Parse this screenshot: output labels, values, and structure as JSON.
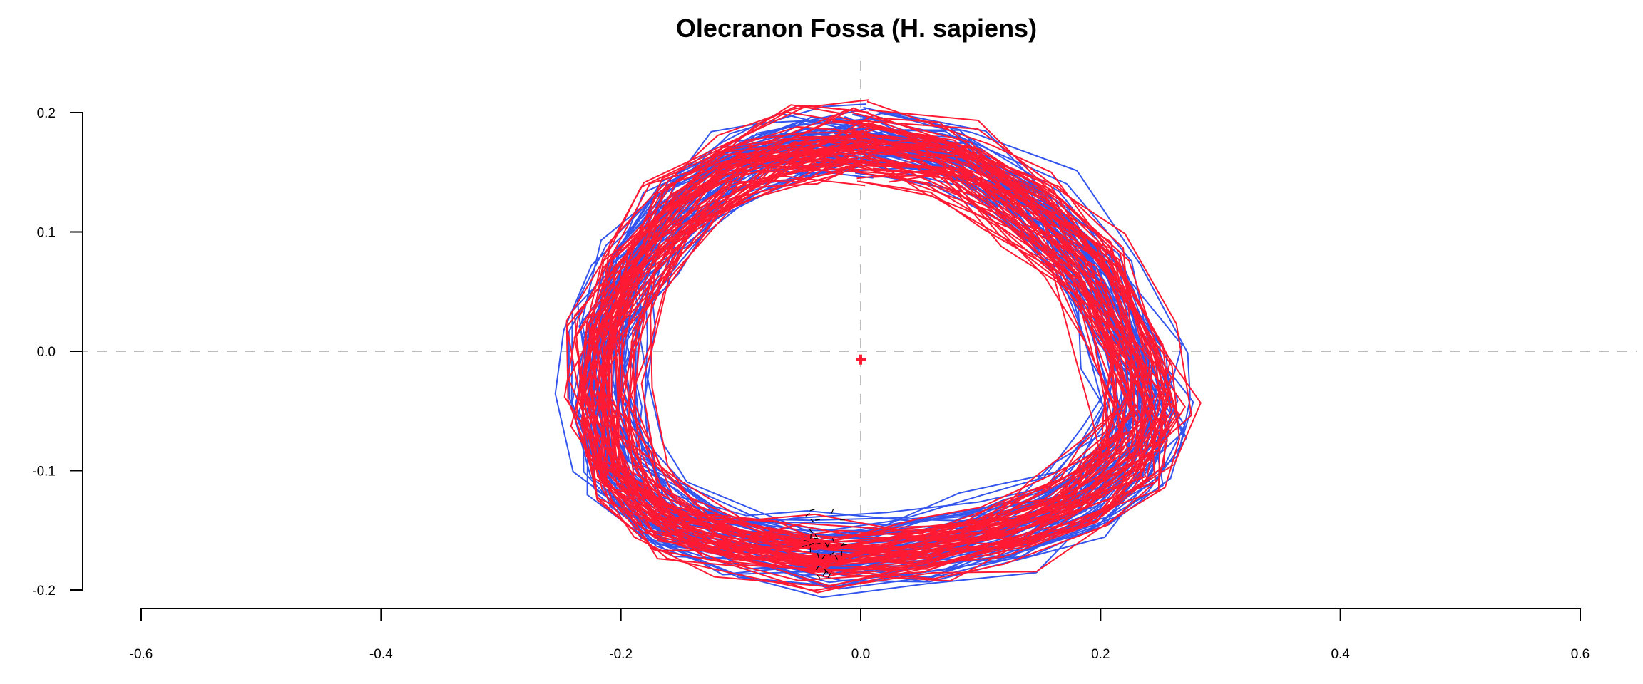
{
  "chart_data": {
    "type": "line",
    "title": "Olecranon Fossa (H. sapiens)",
    "xlabel": "",
    "ylabel": "",
    "xlim": [
      -0.6,
      0.6
    ],
    "ylim": [
      -0.2,
      0.2
    ],
    "x_ticks": [
      -0.6,
      -0.4,
      -0.2,
      0.0,
      0.2,
      0.4,
      0.6
    ],
    "x_tick_labels": [
      "-0.6",
      "-0.4",
      "-0.2",
      "0.0",
      "0.2",
      "0.4",
      "0.6"
    ],
    "y_ticks": [
      -0.2,
      -0.1,
      0.0,
      0.1,
      0.2
    ],
    "y_tick_labels": [
      "-0.2",
      "-0.1",
      "0.0",
      "0.1",
      "0.2"
    ],
    "reference_lines": {
      "x": 0.0,
      "y": 0.0,
      "style": "dashed",
      "color": "#bdbdbd"
    },
    "grid": false,
    "legend": "none",
    "series": [
      {
        "color": "#3355ee",
        "count": 60,
        "mean_outline": {
          "x": [
            0.0,
            0.075,
            0.14,
            0.19,
            0.225,
            0.235,
            0.22,
            0.18,
            0.12,
            0.05,
            -0.03,
            -0.1,
            -0.16,
            -0.2,
            -0.215,
            -0.21,
            -0.19,
            -0.15,
            -0.1,
            -0.05,
            0.0
          ],
          "y": [
            0.175,
            0.16,
            0.12,
            0.07,
            0.0,
            -0.05,
            -0.09,
            -0.125,
            -0.15,
            -0.165,
            -0.17,
            -0.16,
            -0.14,
            -0.1,
            -0.04,
            0.02,
            0.07,
            0.12,
            0.155,
            0.17,
            0.175
          ]
        }
      },
      {
        "color": "#ff1a33",
        "count": 60,
        "mean_outline": {
          "x": [
            0.0,
            0.075,
            0.14,
            0.19,
            0.225,
            0.235,
            0.22,
            0.18,
            0.12,
            0.05,
            -0.03,
            -0.1,
            -0.16,
            -0.2,
            -0.215,
            -0.21,
            -0.19,
            -0.15,
            -0.1,
            -0.05,
            0.0
          ],
          "y": [
            0.175,
            0.16,
            0.12,
            0.07,
            0.0,
            -0.05,
            -0.09,
            -0.125,
            -0.15,
            -0.165,
            -0.17,
            -0.16,
            -0.14,
            -0.1,
            -0.04,
            0.02,
            0.07,
            0.12,
            0.155,
            0.17,
            0.175
          ]
        }
      }
    ],
    "centroid": {
      "x": 0.0,
      "y": -0.007,
      "color": "#ff1a33",
      "marker": "+"
    },
    "landmark_arrows": {
      "x_range": [
        -0.045,
        -0.015
      ],
      "y_range": [
        -0.19,
        -0.13
      ],
      "count": 30,
      "color": "#000000"
    }
  }
}
